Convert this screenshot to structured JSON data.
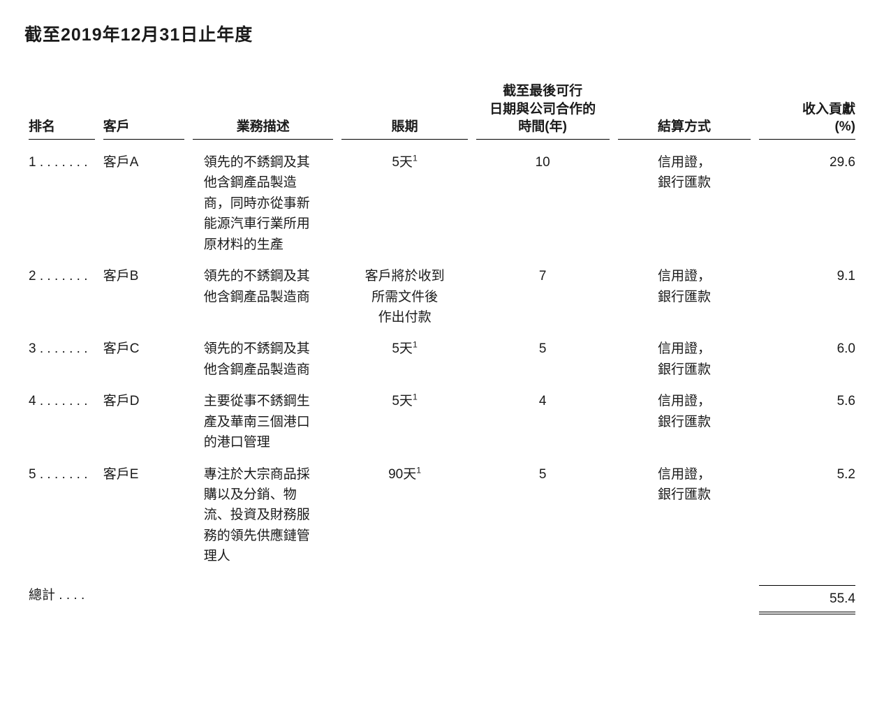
{
  "title": "截至2019年12月31日止年度",
  "headers": {
    "rank": "排名",
    "customer": "客戶",
    "desc": "業務描述",
    "term": "賬期",
    "years": "截至最後可行\n日期與公司合作的\n時間(年)",
    "settle": "結算方式",
    "contrib": "收入貢獻\n(%)"
  },
  "rows": [
    {
      "rank": "1",
      "customer": "客戶A",
      "desc": "領先的不銹鋼及其他含鋼產品製造商，同時亦從事新能源汽車行業所用原材料的生產",
      "term": "5天",
      "term_sup": "1",
      "years": "10",
      "settle": "信用證，\n銀行匯款",
      "contrib": "29.6"
    },
    {
      "rank": "2",
      "customer": "客戶B",
      "desc": "領先的不銹鋼及其他含鋼產品製造商",
      "term": "客戶將於收到\n所需文件後\n作出付款",
      "term_sup": "",
      "years": "7",
      "settle": "信用證，\n銀行匯款",
      "contrib": "9.1"
    },
    {
      "rank": "3",
      "customer": "客戶C",
      "desc": "領先的不銹鋼及其他含鋼產品製造商",
      "term": "5天",
      "term_sup": "1",
      "years": "5",
      "settle": "信用證，\n銀行匯款",
      "contrib": "6.0"
    },
    {
      "rank": "4",
      "customer": "客戶D",
      "desc": "主要從事不銹鋼生產及華南三個港口的港口管理",
      "term": "5天",
      "term_sup": "1",
      "years": "4",
      "settle": "信用證，\n銀行匯款",
      "contrib": "5.6"
    },
    {
      "rank": "5",
      "customer": "客戶E",
      "desc": "專注於大宗商品採購以及分銷、物流、投資及財務服務的領先供應鏈管理人",
      "term": "90天",
      "term_sup": "1",
      "years": "5",
      "settle": "信用證，\n銀行匯款",
      "contrib": "5.2"
    }
  ],
  "total": {
    "label": "總計",
    "value": "55.4"
  }
}
